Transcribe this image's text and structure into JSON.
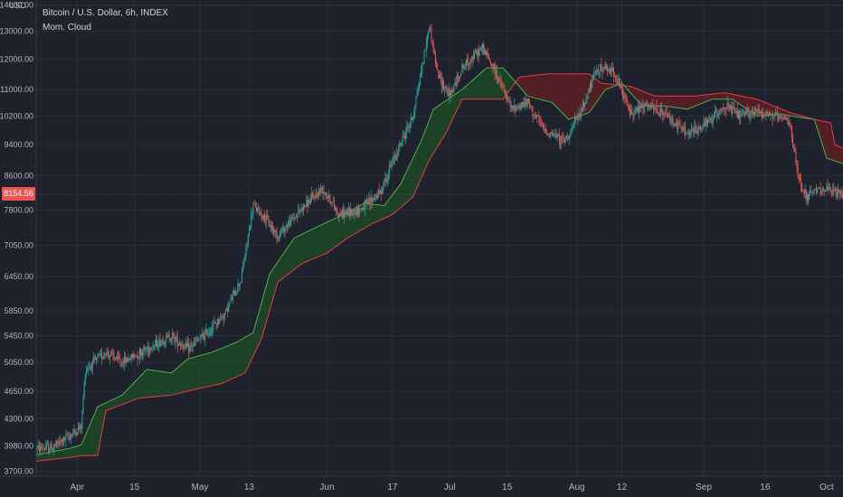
{
  "legend": {
    "title": "Bitcoin / U.S. Dollar, 6h, INDEX",
    "indicator": "Mom. Cloud"
  },
  "price_axis": {
    "currency": "USD",
    "current_price": "8154.56",
    "ticks": [
      "14000.00",
      "13000.00",
      "12000.00",
      "11000.00",
      "10200.00",
      "9400.00",
      "8600.00",
      "7800.00",
      "7050.00",
      "6450.00",
      "5850.00",
      "5450.00",
      "5050.00",
      "4650.00",
      "4300.00",
      "3980.00",
      "3700.00"
    ]
  },
  "time_axis": {
    "ticks": [
      "Apr",
      "15",
      "May",
      "13",
      "Jun",
      "17",
      "Jul",
      "15",
      "Aug",
      "12",
      "Sep",
      "16",
      "Oct"
    ]
  },
  "colors": {
    "background": "#1e222d",
    "grid": "#2a2e39",
    "candle_up": "#26a69a",
    "candle_down": "#ef5350",
    "cloud_fast": "#4caf50",
    "cloud_slow": "#f23645",
    "cloud_fill_bull": "#1b5e20",
    "cloud_fill_bear": "#7f1d1d",
    "price_tag": "#ef5350"
  },
  "chart_data": {
    "type": "candlestick",
    "title": "Bitcoin / U.S. Dollar, 6h, INDEX",
    "indicator": "Mom. Cloud",
    "ylabel": "USD",
    "y_scale": "log",
    "ylim": [
      3650,
      14200
    ],
    "x_range": [
      "2019-03-22",
      "2019-10-05"
    ],
    "grid": true,
    "last_price": 8154.56,
    "price_path": [
      [
        "2019-03-22",
        3950
      ],
      [
        "2019-03-26",
        3960
      ],
      [
        "2019-03-30",
        4090
      ],
      [
        "2019-04-02",
        4200
      ],
      [
        "2019-04-03",
        4950
      ],
      [
        "2019-04-08",
        5200
      ],
      [
        "2019-04-12",
        5050
      ],
      [
        "2019-04-18",
        5250
      ],
      [
        "2019-04-24",
        5450
      ],
      [
        "2019-04-28",
        5250
      ],
      [
        "2019-05-02",
        5450
      ],
      [
        "2019-05-07",
        5800
      ],
      [
        "2019-05-11",
        6400
      ],
      [
        "2019-05-14",
        7900
      ],
      [
        "2019-05-17",
        7600
      ],
      [
        "2019-05-20",
        7250
      ],
      [
        "2019-05-26",
        7850
      ],
      [
        "2019-05-31",
        8300
      ],
      [
        "2019-06-04",
        7700
      ],
      [
        "2019-06-09",
        7800
      ],
      [
        "2019-06-14",
        8200
      ],
      [
        "2019-06-18",
        9200
      ],
      [
        "2019-06-22",
        10200
      ],
      [
        "2019-06-26",
        13200
      ],
      [
        "2019-06-28",
        11500
      ],
      [
        "2019-07-01",
        10800
      ],
      [
        "2019-07-04",
        11700
      ],
      [
        "2019-07-09",
        12400
      ],
      [
        "2019-07-12",
        11600
      ],
      [
        "2019-07-16",
        10400
      ],
      [
        "2019-07-20",
        10600
      ],
      [
        "2019-07-24",
        9800
      ],
      [
        "2019-07-29",
        9500
      ],
      [
        "2019-08-02",
        10300
      ],
      [
        "2019-08-06",
        11700
      ],
      [
        "2019-08-10",
        11600
      ],
      [
        "2019-08-14",
        10300
      ],
      [
        "2019-08-18",
        10500
      ],
      [
        "2019-08-23",
        10200
      ],
      [
        "2019-08-28",
        9700
      ],
      [
        "2019-09-01",
        9900
      ],
      [
        "2019-09-06",
        10500
      ],
      [
        "2019-09-10",
        10200
      ],
      [
        "2019-09-14",
        10350
      ],
      [
        "2019-09-18",
        10200
      ],
      [
        "2019-09-22",
        10000
      ],
      [
        "2019-09-24",
        8600
      ],
      [
        "2019-09-26",
        8100
      ],
      [
        "2019-09-30",
        8300
      ],
      [
        "2019-10-03",
        8200
      ],
      [
        "2019-10-05",
        8154.56
      ]
    ],
    "series": [
      {
        "name": "Mom. Cloud",
        "role": "fast",
        "points": [
          [
            "2019-03-22",
            3880
          ],
          [
            "2019-03-30",
            3950
          ],
          [
            "2019-04-02",
            3990
          ],
          [
            "2019-04-06",
            4450
          ],
          [
            "2019-04-12",
            4600
          ],
          [
            "2019-04-18",
            4950
          ],
          [
            "2019-04-24",
            4900
          ],
          [
            "2019-04-28",
            5100
          ],
          [
            "2019-05-04",
            5200
          ],
          [
            "2019-05-10",
            5350
          ],
          [
            "2019-05-14",
            5500
          ],
          [
            "2019-05-18",
            6500
          ],
          [
            "2019-05-24",
            7200
          ],
          [
            "2019-05-30",
            7450
          ],
          [
            "2019-06-05",
            7700
          ],
          [
            "2019-06-10",
            7950
          ],
          [
            "2019-06-15",
            7900
          ],
          [
            "2019-06-19",
            8400
          ],
          [
            "2019-06-24",
            9500
          ],
          [
            "2019-06-27",
            10400
          ],
          [
            "2019-07-04",
            11000
          ],
          [
            "2019-07-10",
            11700
          ],
          [
            "2019-07-14",
            11700
          ],
          [
            "2019-07-20",
            10800
          ],
          [
            "2019-07-26",
            10600
          ],
          [
            "2019-07-30",
            10100
          ],
          [
            "2019-08-04",
            10300
          ],
          [
            "2019-08-08",
            11000
          ],
          [
            "2019-08-12",
            11200
          ],
          [
            "2019-08-17",
            10500
          ],
          [
            "2019-08-22",
            10500
          ],
          [
            "2019-08-28",
            10400
          ],
          [
            "2019-09-03",
            10700
          ],
          [
            "2019-09-08",
            10700
          ],
          [
            "2019-09-14",
            10200
          ],
          [
            "2019-09-20",
            10250
          ],
          [
            "2019-09-25",
            10150
          ],
          [
            "2019-09-28",
            10100
          ],
          [
            "2019-10-01",
            9050
          ],
          [
            "2019-10-05",
            8900
          ]
        ]
      },
      {
        "name": "Mom. Cloud",
        "role": "slow",
        "points": [
          [
            "2019-03-22",
            3810
          ],
          [
            "2019-03-30",
            3850
          ],
          [
            "2019-04-02",
            3870
          ],
          [
            "2019-04-06",
            3870
          ],
          [
            "2019-04-08",
            4400
          ],
          [
            "2019-04-16",
            4560
          ],
          [
            "2019-04-24",
            4600
          ],
          [
            "2019-04-30",
            4680
          ],
          [
            "2019-05-06",
            4750
          ],
          [
            "2019-05-12",
            4900
          ],
          [
            "2019-05-16",
            5400
          ],
          [
            "2019-05-20",
            6350
          ],
          [
            "2019-05-26",
            6700
          ],
          [
            "2019-06-01",
            6900
          ],
          [
            "2019-06-06",
            7200
          ],
          [
            "2019-06-12",
            7500
          ],
          [
            "2019-06-17",
            7700
          ],
          [
            "2019-06-22",
            8100
          ],
          [
            "2019-06-26",
            9000
          ],
          [
            "2019-06-30",
            9700
          ],
          [
            "2019-07-04",
            10700
          ],
          [
            "2019-07-14",
            10700
          ],
          [
            "2019-07-18",
            11400
          ],
          [
            "2019-07-25",
            11500
          ],
          [
            "2019-08-04",
            11500
          ],
          [
            "2019-08-07",
            11200
          ],
          [
            "2019-08-14",
            11100
          ],
          [
            "2019-08-20",
            10800
          ],
          [
            "2019-08-30",
            10800
          ],
          [
            "2019-09-06",
            10900
          ],
          [
            "2019-09-14",
            10700
          ],
          [
            "2019-09-22",
            10300
          ],
          [
            "2019-09-28",
            10100
          ],
          [
            "2019-10-02",
            10000
          ],
          [
            "2019-10-03",
            9400
          ],
          [
            "2019-10-05",
            9300
          ]
        ]
      }
    ]
  }
}
